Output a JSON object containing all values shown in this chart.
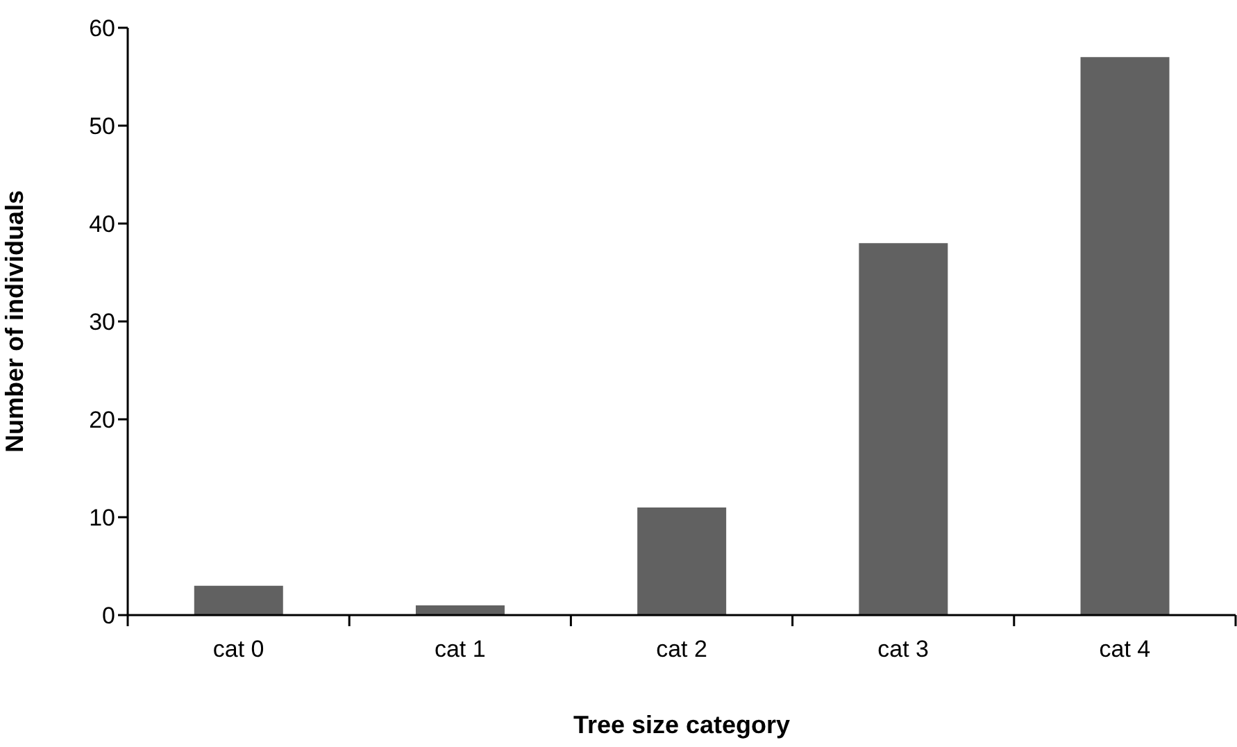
{
  "chart_data": {
    "type": "bar",
    "xlabel": "Tree size category",
    "ylabel": "Number of individuals",
    "categories": [
      "cat 0",
      "cat 1",
      "cat 2",
      "cat 3",
      "cat 4"
    ],
    "values": [
      3,
      1,
      11,
      38,
      57
    ],
    "color": "#616161",
    "ylim": [
      0,
      60
    ],
    "yticks": [
      0,
      10,
      20,
      30,
      40,
      50,
      60
    ],
    "grid": false
  }
}
